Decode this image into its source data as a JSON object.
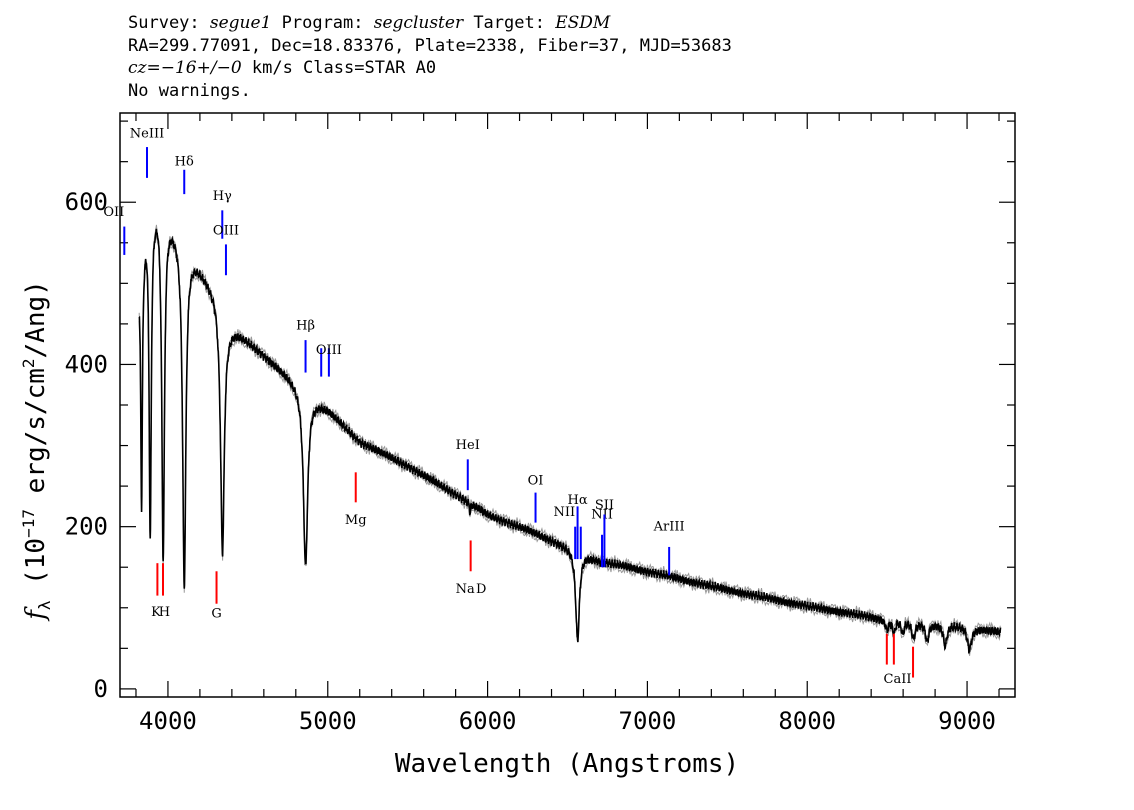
{
  "header": {
    "line1_a": "Survey: ",
    "line1_survey": "segue1",
    "line1_b": " Program: ",
    "line1_program": "segcluster",
    "line1_c": " Target: ",
    "line1_target": "ESDM",
    "line2": "RA=299.77091, Dec=18.83376, Plate=2338, Fiber=37, MJD=53683",
    "line3_cz": "cz=−16+/−0",
    "line3_rest": " km/s Class=STAR A0",
    "line4": "No warnings."
  },
  "chart_data": {
    "type": "line",
    "xlabel": "Wavelength (Angstroms)",
    "ylabel_prefix": "f",
    "ylabel_sub": "λ",
    "ylabel_main": " (10",
    "ylabel_exp": "−17",
    "ylabel_rest": " erg/s/cm",
    "ylabel_exp2": "2",
    "ylabel_end": "/Ang)",
    "xlim": [
      3700,
      9300
    ],
    "ylim": [
      -10,
      710
    ],
    "x_ticks": [
      4000,
      5000,
      6000,
      7000,
      8000,
      9000
    ],
    "x_tick_labels": [
      "4000",
      "5000",
      "6000",
      "7000",
      "8000",
      "9000"
    ],
    "y_ticks": [
      0,
      200,
      400,
      600
    ],
    "y_tick_labels": [
      "0",
      "200",
      "400",
      "600"
    ],
    "spectrum_range": [
      3820,
      9210
    ],
    "continuum": [
      [
        3820,
        510
      ],
      [
        3870,
        590
      ],
      [
        3940,
        608
      ],
      [
        4020,
        580
      ],
      [
        4100,
        550
      ],
      [
        4200,
        520
      ],
      [
        4300,
        490
      ],
      [
        4380,
        450
      ],
      [
        4500,
        430
      ],
      [
        4700,
        395
      ],
      [
        4900,
        360
      ],
      [
        5000,
        345
      ],
      [
        5200,
        305
      ],
      [
        5500,
        275
      ],
      [
        5800,
        240
      ],
      [
        6000,
        215
      ],
      [
        6300,
        192
      ],
      [
        6500,
        175
      ],
      [
        6700,
        158
      ],
      [
        7000,
        145
      ],
      [
        7500,
        122
      ],
      [
        8000,
        102
      ],
      [
        8500,
        85
      ],
      [
        8800,
        80
      ],
      [
        9000,
        77
      ],
      [
        9210,
        70
      ]
    ],
    "absorption_lines": [
      {
        "center": 3835,
        "depth": 300,
        "width": 6
      },
      {
        "center": 3889,
        "depth": 400,
        "width": 8
      },
      {
        "center": 3970,
        "depth": 430,
        "width": 10
      },
      {
        "center": 4102,
        "depth": 420,
        "width": 12
      },
      {
        "center": 4341,
        "depth": 300,
        "width": 14
      },
      {
        "center": 4861,
        "depth": 215,
        "width": 16
      },
      {
        "center": 5890,
        "depth": 12,
        "width": 4
      },
      {
        "center": 6563,
        "depth": 110,
        "width": 14
      },
      {
        "center": 8498,
        "depth": 12,
        "width": 10
      },
      {
        "center": 8542,
        "depth": 15,
        "width": 10
      },
      {
        "center": 8598,
        "depth": 15,
        "width": 10
      },
      {
        "center": 8665,
        "depth": 20,
        "width": 12
      },
      {
        "center": 8750,
        "depth": 22,
        "width": 12
      },
      {
        "center": 8863,
        "depth": 25,
        "width": 14
      },
      {
        "center": 9015,
        "depth": 28,
        "width": 16
      }
    ],
    "emission_markers": [
      {
        "name": "OII",
        "x": 3727,
        "y1": 535,
        "y2": 570,
        "label_y": 583,
        "anchor": "end"
      },
      {
        "name": "NeIII",
        "x": 3869,
        "y1": 630,
        "y2": 668,
        "label_y": 680
      },
      {
        "name": "Hδ",
        "x": 4102,
        "y1": 610,
        "y2": 640,
        "label_y": 645
      },
      {
        "name": "Hγ",
        "x": 4340,
        "y1": 555,
        "y2": 590,
        "label_y": 603
      },
      {
        "name": "OIII",
        "x": 4363,
        "y1": 510,
        "y2": 548,
        "label_y": 560
      },
      {
        "name": "Hβ",
        "x": 4861,
        "y1": 390,
        "y2": 430,
        "label_y": 443
      },
      {
        "name": "OIII",
        "x": 4959,
        "y1": 385,
        "y2": 420,
        "label_y": 0
      },
      {
        "name": "OIII",
        "x": 5007,
        "y1": 385,
        "y2": 420,
        "label_y": 413
      },
      {
        "name": "HeI",
        "x": 5876,
        "y1": 245,
        "y2": 283,
        "label_y": 296
      },
      {
        "name": "OI",
        "x": 6300,
        "y1": 205,
        "y2": 242,
        "label_y": 252
      },
      {
        "name": "NII",
        "x": 6548,
        "y1": 160,
        "y2": 200,
        "label_y": 213,
        "anchor": "end"
      },
      {
        "name": "Hα",
        "x": 6563,
        "y1": 160,
        "y2": 225,
        "label_y": 228
      },
      {
        "name": "NII",
        "x": 6583,
        "y1": 160,
        "y2": 200,
        "label_y": 0
      },
      {
        "name": "NII",
        "x": 6716,
        "y1": 150,
        "y2": 190,
        "label_y": 210
      },
      {
        "name": "SII",
        "x": 6731,
        "y1": 150,
        "y2": 215,
        "label_y": 222
      },
      {
        "name": "ArIII",
        "x": 7136,
        "y1": 140,
        "y2": 175,
        "label_y": 195
      }
    ],
    "absorption_markers": [
      {
        "name": "K",
        "x": 3934,
        "y1": 115,
        "y2": 155
      },
      {
        "name": "H",
        "x": 3969,
        "y1": 115,
        "y2": 155
      },
      {
        "name": "G",
        "x": 4304,
        "y1": 105,
        "y2": 145
      },
      {
        "name": "Mg",
        "x": 5175,
        "y1": 230,
        "y2": 267
      },
      {
        "name": "Na",
        "x": 5894,
        "y1": 145,
        "y2": 183
      },
      {
        "name": "CaII",
        "x": 8498,
        "y1": 30,
        "y2": 68
      },
      {
        "name": "CaII",
        "x": 8542,
        "y1": 30,
        "y2": 68
      },
      {
        "name": "CaII",
        "x": 8662,
        "y1": 14,
        "y2": 52
      }
    ],
    "absorption_labels": [
      {
        "text": "K",
        "x": 3925,
        "y": 90
      },
      {
        "text": "H",
        "x": 3978,
        "y": 90
      },
      {
        "text": "G",
        "x": 4304,
        "y": 88
      },
      {
        "text": "Mg",
        "x": 5175,
        "y": 203
      },
      {
        "text": "Na",
        "x": 5860,
        "y": 118
      },
      {
        "text": "D",
        "x": 5960,
        "y": 118
      },
      {
        "text": "CaII",
        "x": 8565,
        "y": 7
      }
    ],
    "colors": {
      "emission": "#0000ff",
      "absorption": "#ff0000",
      "spectrum": "#000000",
      "error": "#999999"
    }
  }
}
